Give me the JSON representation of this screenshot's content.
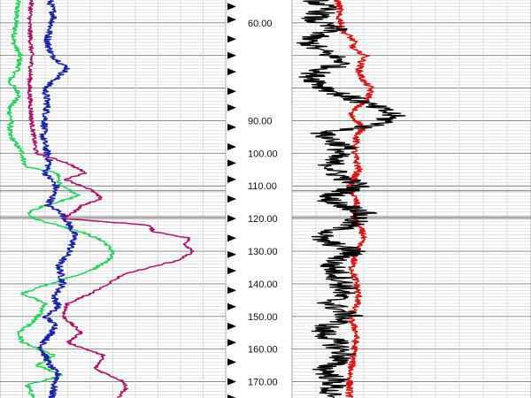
{
  "colors": {
    "background": "#ffffff",
    "grid": "#c9c9c9",
    "grid_major": "#7a7a7a",
    "magenta": "#b0106a",
    "green": "#22d65a",
    "blue": "#1a22a8",
    "red": "#e01010",
    "black": "#000000"
  },
  "chart_data": {
    "type": "line",
    "depth_axis": {
      "range": [
        53,
        175
      ],
      "tick_labels": [
        "60.00",
        "90.00",
        "100.00",
        "110.00",
        "120.00",
        "130.00",
        "140.00",
        "150.00",
        "160.00",
        "170.00"
      ],
      "ticks": [
        60,
        90,
        100,
        110,
        120,
        130,
        140,
        150,
        160,
        170
      ],
      "markers": [
        55,
        59,
        65,
        70,
        75,
        81,
        86,
        92,
        98,
        103,
        108,
        114,
        120,
        126,
        131,
        136,
        142,
        147,
        153,
        158,
        164,
        170,
        175
      ]
    },
    "tracks": [
      {
        "name": "left-track",
        "xlim": [
          0,
          100
        ],
        "series": [
          {
            "color": "green",
            "depths": [
              53,
              60,
              66,
              70,
              74,
              78,
              82,
              86,
              90,
              94,
              98,
              100,
              104,
              106,
              110,
              113,
              116,
              118,
              120,
              124,
              127,
              130,
              133,
              136,
              140,
              143,
              146,
              149,
              152,
              155,
              158,
              162,
              165,
              168,
              171,
              175
            ],
            "values": [
              8,
              7,
              6,
              9,
              8,
              4,
              9,
              4,
              5,
              4,
              8,
              10,
              11,
              25,
              27,
              35,
              20,
              13,
              15,
              36,
              46,
              50,
              48,
              40,
              22,
              10,
              20,
              18,
              14,
              8,
              10,
              24,
              16,
              28,
              12,
              15
            ]
          },
          {
            "color": "blue",
            "depths": [
              53,
              58,
              62,
              66,
              70,
              74,
              80,
              85,
              90,
              95,
              100,
              103,
              106,
              110,
              114,
              116,
              118,
              121,
              125,
              128,
              131,
              134,
              137,
              140,
              144,
              147,
              150,
              153,
              156,
              159,
              162,
              165,
              168,
              171,
              175
            ],
            "values": [
              22,
              24,
              22,
              21,
              23,
              30,
              20,
              21,
              20,
              19,
              21,
              22,
              20,
              25,
              23,
              21,
              27,
              30,
              33,
              32,
              30,
              26,
              27,
              28,
              24,
              26,
              20,
              25,
              22,
              18,
              20,
              22,
              26,
              24,
              23
            ]
          },
          {
            "color": "magenta",
            "depths": [
              53,
              60,
              70,
              80,
              90,
              100,
              103,
              106,
              108,
              111,
              114,
              116,
              118,
              120,
              122,
              124,
              126,
              128,
              130,
              133,
              135,
              137,
              140,
              143,
              146,
              150,
              155,
              158,
              162,
              166,
              170,
              172,
              175
            ],
            "values": [
              14,
              13,
              14,
              13,
              14,
              16,
              30,
              38,
              29,
              40,
              45,
              36,
              33,
              28,
              66,
              68,
              84,
              82,
              86,
              78,
              66,
              55,
              48,
              40,
              30,
              28,
              36,
              30,
              46,
              42,
              55,
              56,
              52
            ]
          }
        ]
      },
      {
        "name": "right-track",
        "xlim": [
          0,
          100
        ],
        "series": [
          {
            "color": "red",
            "depths": [
              53,
              56,
              58,
              60,
              62,
              64,
              66,
              68,
              70,
              72,
              75,
              78,
              80,
              83,
              86,
              88,
              90,
              92,
              95,
              100,
              105,
              110,
              115,
              120,
              125,
              130,
              135,
              140,
              145,
              150,
              155,
              160,
              165,
              170,
              175
            ],
            "values": [
              19,
              20,
              19,
              21,
              20,
              24,
              26,
              25,
              31,
              29,
              28,
              30,
              33,
              32,
              27,
              24,
              27,
              30,
              27,
              26,
              28,
              24,
              27,
              26,
              30,
              27,
              25,
              27,
              28,
              24,
              27,
              26,
              25,
              24,
              24
            ]
          },
          {
            "color": "black",
            "depths": [
              53,
              56,
              59,
              62,
              65,
              68,
              72,
              76,
              80,
              84,
              88,
              91,
              94,
              98,
              102,
              106,
              110,
              114,
              118,
              122,
              126,
              130,
              134,
              138,
              142,
              146,
              150,
              154,
              158,
              162,
              166,
              170,
              175
            ],
            "values": [
              10,
              14,
              8,
              18,
              6,
              10,
              22,
              8,
              14,
              28,
              42,
              38,
              12,
              22,
              16,
              18,
              28,
              14,
              30,
              24,
              10,
              26,
              16,
              20,
              22,
              16,
              24,
              12,
              18,
              22,
              14,
              18,
              14
            ]
          }
        ]
      }
    ]
  }
}
